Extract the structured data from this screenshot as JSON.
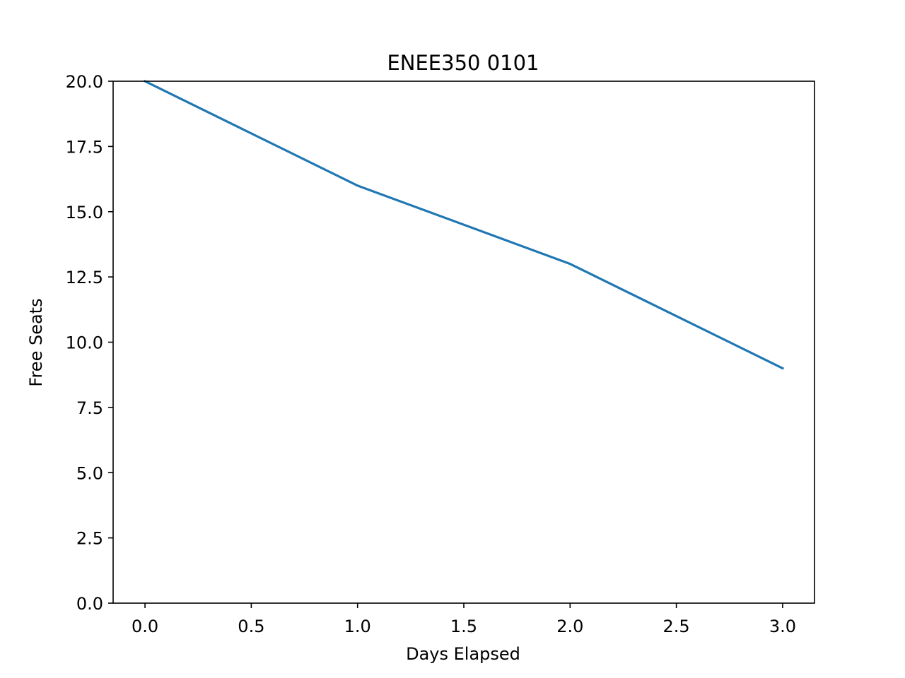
{
  "chart_data": {
    "type": "line",
    "title": "ENEE350 0101",
    "xlabel": "Days Elapsed",
    "ylabel": "Free Seats",
    "xlim": [
      -0.15,
      3.15
    ],
    "ylim": [
      0,
      20
    ],
    "xticks": [
      "0.0",
      "0.5",
      "1.0",
      "1.5",
      "2.0",
      "2.5",
      "3.0"
    ],
    "yticks": [
      "0.0",
      "2.5",
      "5.0",
      "7.5",
      "10.0",
      "12.5",
      "15.0",
      "17.5",
      "20.0"
    ],
    "grid": false,
    "series": [
      {
        "x": [
          0,
          1,
          2,
          3
        ],
        "y": [
          20,
          16,
          13,
          9
        ],
        "color": "#1f77b4"
      }
    ]
  }
}
